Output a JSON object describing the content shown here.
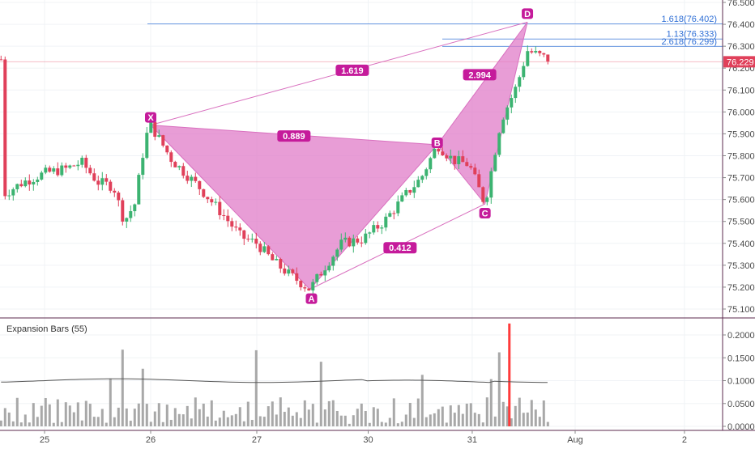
{
  "colors": {
    "up": "#3cb371",
    "down": "#e0405a",
    "pattern_fill": "#e07cc8",
    "pattern_line": "#d970bf",
    "badge": "#c51b9b",
    "fib": "#2f6fd6",
    "price_badge": "#e0405a",
    "volume": "#a8a8a8",
    "volume_spike": "#ff3b3b",
    "avg_line": "#555555"
  },
  "chart_data": [
    {
      "type": "candlestick",
      "x_ticks": [
        "25",
        "26",
        "27",
        "30",
        "31",
        "Aug",
        "2"
      ],
      "y_ticks": [
        "75.100",
        "75.200",
        "75.300",
        "75.400",
        "75.500",
        "75.600",
        "75.700",
        "75.800",
        "75.900",
        "76.000",
        "76.100",
        "76.200",
        "76.300",
        "76.400",
        "76.500"
      ],
      "ylim": [
        75.06,
        76.52
      ],
      "last_price": "76.229",
      "pattern_points": [
        {
          "name": "X",
          "t": 1.0,
          "price": 75.94
        },
        {
          "name": "A",
          "t": 2.5,
          "price": 75.19
        },
        {
          "name": "B",
          "t": 3.7,
          "price": 75.85
        },
        {
          "name": "C",
          "t": 4.15,
          "price": 75.58
        },
        {
          "name": "D",
          "t": 4.55,
          "price": 76.41
        }
      ],
      "ratio_labels": [
        {
          "text": "1.619",
          "t": 2.9,
          "price": 76.19
        },
        {
          "text": "0.889",
          "t": 2.35,
          "price": 75.89
        },
        {
          "text": "0.412",
          "t": 3.35,
          "price": 75.38
        },
        {
          "text": "2.994",
          "t": 4.1,
          "price": 76.17
        }
      ],
      "fib_levels": [
        {
          "label": "1.618(76.402)",
          "price": 76.402
        },
        {
          "label": "1.13(76.333)",
          "price": 76.333
        },
        {
          "label": "2.618(76.299)",
          "price": 76.299
        }
      ]
    },
    {
      "type": "bar",
      "title": "Expansion Bars (55)",
      "y_ticks": [
        "0.0000",
        "0.0500",
        "0.1000",
        "0.1500",
        "0.2000"
      ],
      "ylim": [
        -0.005,
        0.235
      ],
      "spike_value": 0.225,
      "avg_level": 0.1
    }
  ]
}
